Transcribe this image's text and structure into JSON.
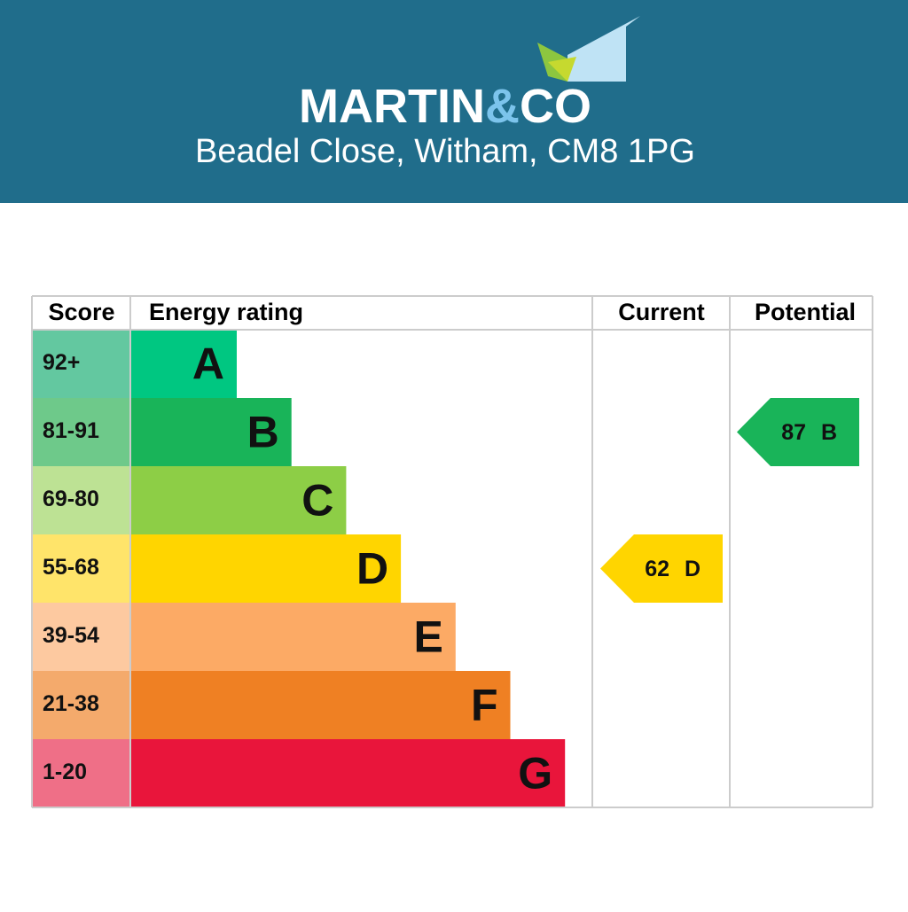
{
  "header": {
    "brand": [
      "MARTIN",
      "&",
      "CO"
    ],
    "address": "Beadel Close, Witham, CM8 1PG"
  },
  "table": {
    "columns": [
      "Score",
      "Energy rating",
      "Current",
      "Potential"
    ],
    "bands": [
      {
        "score": "92+",
        "letter": "A",
        "color": "#00c781",
        "score_color": "#63c8a0"
      },
      {
        "score": "81-91",
        "letter": "B",
        "color": "#19b459",
        "score_color": "#6ec98a"
      },
      {
        "score": "69-80",
        "letter": "C",
        "color": "#8dce46",
        "score_color": "#bde294"
      },
      {
        "score": "55-68",
        "letter": "D",
        "color": "#ffd500",
        "score_color": "#ffe46a"
      },
      {
        "score": "39-54",
        "letter": "E",
        "color": "#fcaa65",
        "score_color": "#fdc9a0"
      },
      {
        "score": "21-38",
        "letter": "F",
        "color": "#ef8023",
        "score_color": "#f4aa6c"
      },
      {
        "score": "1-20",
        "letter": "G",
        "color": "#e9153b",
        "score_color": "#ef6f87"
      }
    ],
    "current": {
      "value": 62,
      "letter": "D"
    },
    "potential": {
      "value": 87,
      "letter": "B"
    }
  }
}
